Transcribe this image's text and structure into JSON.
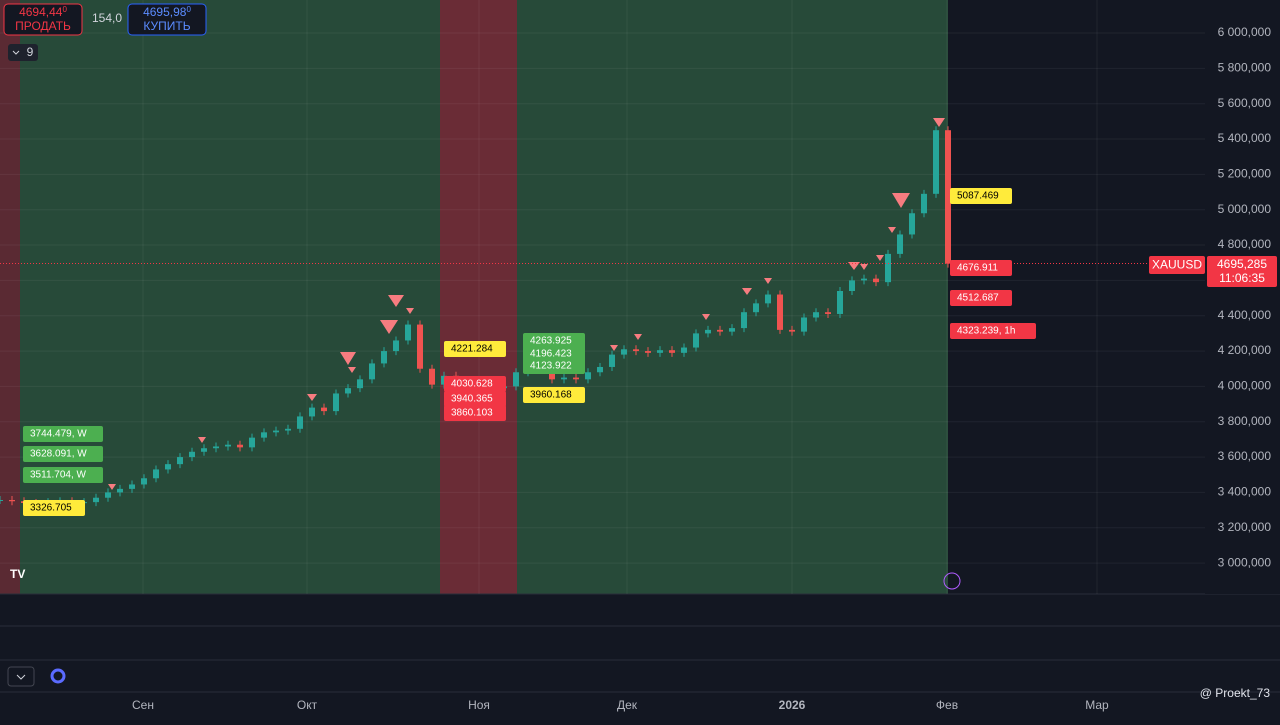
{
  "chart_data": {
    "type": "candlestick",
    "symbol": "XAUUSD",
    "values": [
      3357,
      3350,
      3340,
      3330,
      3345,
      3350,
      3340,
      3345,
      3370,
      3400,
      3420,
      3445,
      3480,
      3530,
      3560,
      3600,
      3630,
      3650,
      3660,
      3670,
      3655,
      3710,
      3740,
      3750,
      3760,
      3830,
      3880,
      3860,
      3960,
      3990,
      4040,
      4130,
      4200,
      4260,
      4350,
      4100,
      4010,
      4060,
      3950,
      3980,
      3990,
      3990,
      4000,
      4080,
      4150,
      4120,
      4040,
      4050,
      4040,
      4080,
      4110,
      4180,
      4210,
      4200,
      4190,
      4205,
      4190,
      4220,
      4300,
      4320,
      4310,
      4330,
      4420,
      4470,
      4520,
      4320,
      4310,
      4390,
      4420,
      4410,
      4540,
      4600,
      4610,
      4590,
      4750,
      4860,
      4980,
      5090,
      5450,
      4695
    ],
    "up_color": "#26a69a",
    "down_color": "#ef5350",
    "ylim": [
      2825,
      6187
    ],
    "yticks": [
      {
        "value": 6000,
        "label": "6 000,000"
      },
      {
        "value": 5800,
        "label": "5 800,000"
      },
      {
        "value": 5600,
        "label": "5 600,000"
      },
      {
        "value": 5400,
        "label": "5 400,000"
      },
      {
        "value": 5200,
        "label": "5 200,000"
      },
      {
        "value": 5000,
        "label": "5 000,000"
      },
      {
        "value": 4800,
        "label": "4 800,000"
      },
      {
        "value": 4600,
        "label": "4 600,000"
      },
      {
        "value": 4400,
        "label": "4 400,000"
      },
      {
        "value": 4200,
        "label": "4 200,000"
      },
      {
        "value": 4000,
        "label": "4 000,000"
      },
      {
        "value": 3800,
        "label": "3 800,000"
      },
      {
        "value": 3600,
        "label": "3 600,000"
      },
      {
        "value": 3400,
        "label": "3 400,000"
      },
      {
        "value": 3200,
        "label": "3 200,000"
      },
      {
        "value": 3000,
        "label": "3 000,000"
      }
    ],
    "x_labels": [
      "Сен",
      "Окт",
      "Ноя",
      "Дек",
      "2026",
      "Фев",
      "Мар"
    ],
    "price_tag": {
      "value": 4695.285,
      "label": "4695,285"
    },
    "timer": "11:06:35",
    "annotations": [
      "5087.469",
      "4676.911",
      "4512.687",
      "4323.239, 1h",
      "4221.284",
      "4030.628",
      "3940.365",
      "3860.103",
      "4263.925",
      "4196.423",
      "4123.922",
      "3960.168",
      "3744.479, W",
      "3628.091, W",
      "3511.704, W",
      "3326.705"
    ]
  },
  "toolbar": {
    "sell_price": "4694,44",
    "sell_sup": "0",
    "sell_label": "ПРОДАТЬ",
    "spread": "154,0",
    "buy_price": "4695,98",
    "buy_sup": "0",
    "buy_label": "КУПИТЬ",
    "indicator_count": "9"
  },
  "watermark": "@ Proekt_73"
}
